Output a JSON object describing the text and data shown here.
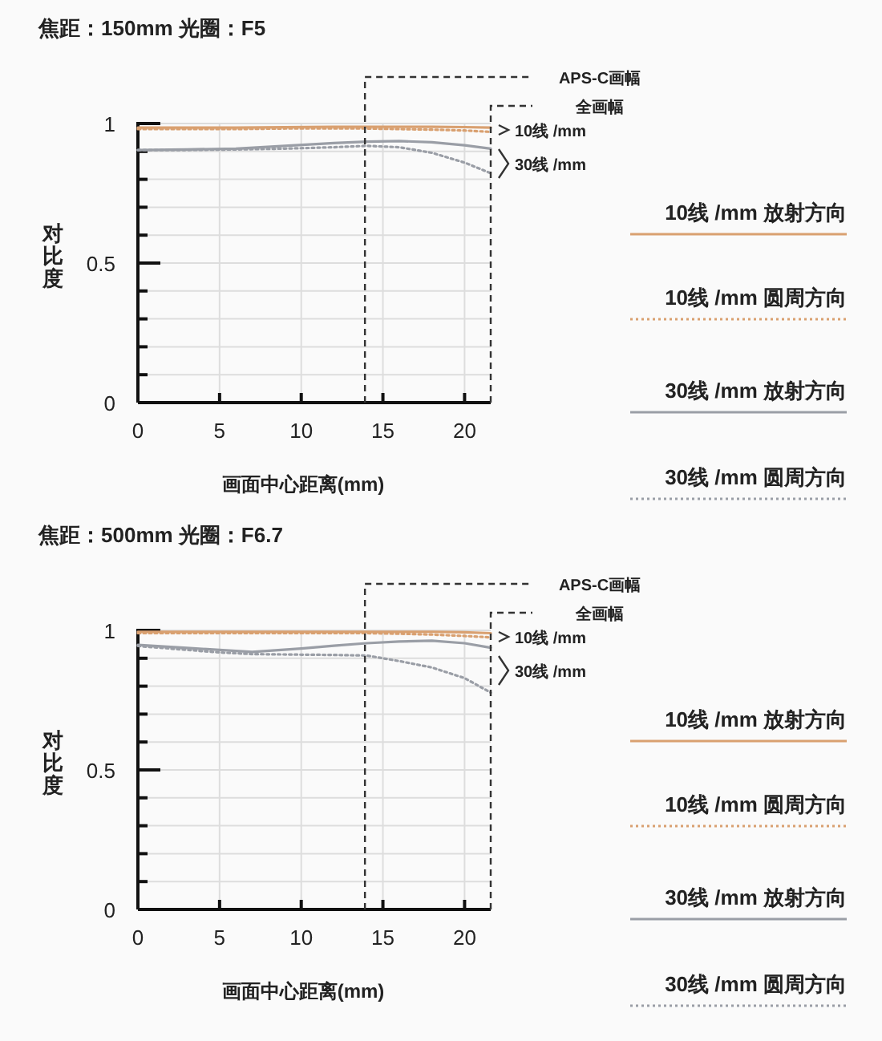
{
  "chart_data": [
    {
      "type": "line",
      "title": "焦距：150mm 光圈：F5",
      "xlabel": "画面中心距离(mm)",
      "ylabel": "对比度",
      "x": [
        0,
        3,
        6,
        9,
        12,
        14,
        16,
        18,
        20,
        21.6
      ],
      "series": [
        {
          "name": "10线 /mm 放射方向",
          "color": "#d9a070",
          "line_style": "solid",
          "values": [
            0.985,
            0.985,
            0.985,
            0.987,
            0.988,
            0.988,
            0.988,
            0.988,
            0.987,
            0.985
          ]
        },
        {
          "name": "10线 /mm 圆周方向",
          "color": "#d9a070",
          "line_style": "dotted",
          "values": [
            0.98,
            0.98,
            0.98,
            0.982,
            0.982,
            0.982,
            0.98,
            0.978,
            0.975,
            0.97
          ]
        },
        {
          "name": "30线 /mm 放射方向",
          "color": "#9a9ea6",
          "line_style": "solid",
          "values": [
            0.905,
            0.907,
            0.91,
            0.92,
            0.93,
            0.935,
            0.937,
            0.933,
            0.922,
            0.91
          ]
        },
        {
          "name": "30线 /mm 圆周方向",
          "color": "#9a9ea6",
          "line_style": "dotted",
          "values": [
            0.905,
            0.905,
            0.907,
            0.91,
            0.915,
            0.92,
            0.915,
            0.895,
            0.86,
            0.822
          ]
        }
      ],
      "xlim": [
        0,
        21.6
      ],
      "ylim": [
        0,
        1
      ],
      "xticks": [
        0,
        5,
        10,
        15,
        20
      ],
      "yticks": [
        0,
        {
          "value": 0.1,
          "label": null
        },
        {
          "value": 0.2,
          "label": null
        },
        {
          "value": 0.3,
          "label": null
        },
        {
          "value": 0.4,
          "label": null
        },
        0.5,
        {
          "value": 0.6,
          "label": null
        },
        {
          "value": 0.7,
          "label": null
        },
        {
          "value": 0.8,
          "label": null
        },
        {
          "value": 0.9,
          "label": null
        },
        1
      ],
      "grid": true,
      "legend": "right",
      "ref_lines": [
        {
          "axis": "x",
          "value": 13.9,
          "label": "APS-C画幅",
          "line_style": "dashed"
        },
        {
          "axis": "x",
          "value": 21.6,
          "label": "全画幅",
          "line_style": "dashed"
        }
      ],
      "annotations": [
        "10线 /mm",
        "30线 /mm"
      ]
    },
    {
      "type": "line",
      "title": "焦距：500mm 光圈：F6.7",
      "xlabel": "画面中心距离(mm)",
      "ylabel": "对比度",
      "x": [
        0,
        3,
        5,
        7,
        10,
        12,
        14,
        16,
        18,
        20,
        21.6
      ],
      "series": [
        {
          "name": "10线 /mm 放射方向",
          "color": "#d9a070",
          "line_style": "solid",
          "values": [
            0.995,
            0.995,
            0.995,
            0.995,
            0.995,
            0.995,
            0.995,
            0.995,
            0.995,
            0.993,
            0.99
          ]
        },
        {
          "name": "10线 /mm 圆周方向",
          "color": "#d9a070",
          "line_style": "dotted",
          "values": [
            0.99,
            0.99,
            0.99,
            0.99,
            0.99,
            0.99,
            0.99,
            0.988,
            0.985,
            0.98,
            0.975
          ]
        },
        {
          "name": "30线 /mm 放射方向",
          "color": "#9a9ea6",
          "line_style": "solid",
          "values": [
            0.948,
            0.937,
            0.93,
            0.923,
            0.935,
            0.945,
            0.954,
            0.96,
            0.963,
            0.954,
            0.938
          ]
        },
        {
          "name": "30线 /mm 圆周方向",
          "color": "#9a9ea6",
          "line_style": "dotted",
          "values": [
            0.944,
            0.93,
            0.921,
            0.915,
            0.913,
            0.912,
            0.91,
            0.89,
            0.867,
            0.829,
            0.777
          ]
        }
      ],
      "xlim": [
        0,
        21.6
      ],
      "ylim": [
        0,
        1
      ],
      "xticks": [
        0,
        5,
        10,
        15,
        20
      ],
      "yticks": [
        0,
        {
          "value": 0.1,
          "label": null
        },
        {
          "value": 0.2,
          "label": null
        },
        {
          "value": 0.3,
          "label": null
        },
        {
          "value": 0.4,
          "label": null
        },
        0.5,
        {
          "value": 0.6,
          "label": null
        },
        {
          "value": 0.7,
          "label": null
        },
        {
          "value": 0.8,
          "label": null
        },
        {
          "value": 0.9,
          "label": null
        },
        1
      ],
      "grid": true,
      "legend": "right",
      "ref_lines": [
        {
          "axis": "x",
          "value": 13.9,
          "label": "APS-C画幅",
          "line_style": "dashed"
        },
        {
          "axis": "x",
          "value": 21.6,
          "label": "全画幅",
          "line_style": "dashed"
        }
      ],
      "annotations": [
        "10线 /mm",
        "30线 /mm"
      ]
    }
  ]
}
